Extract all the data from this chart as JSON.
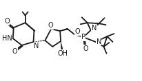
{
  "bg_color": "#ffffff",
  "line_color": "#1a1a1a",
  "line_width": 1.3,
  "font_size": 7.0,
  "fig_width": 2.06,
  "fig_height": 1.18,
  "dpi": 100,
  "xlim": [
    0,
    206
  ],
  "ylim": [
    0,
    118
  ]
}
